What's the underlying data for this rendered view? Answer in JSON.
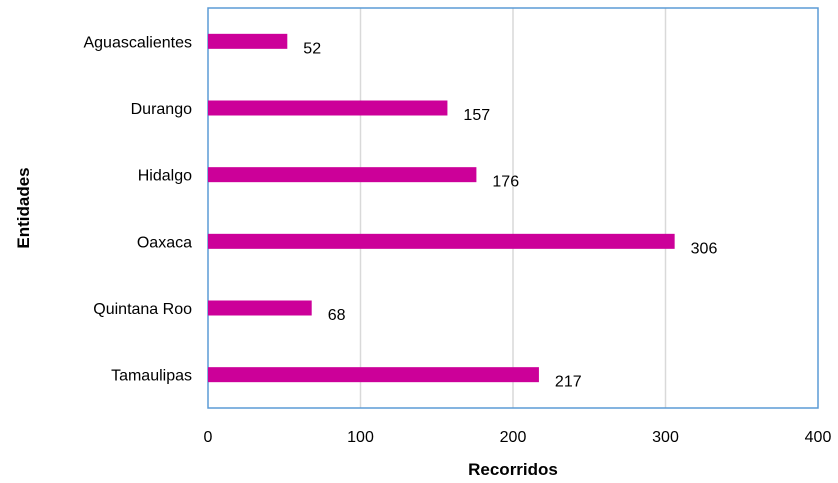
{
  "chart_data": {
    "type": "bar",
    "orientation": "horizontal",
    "categories": [
      "Aguascalientes",
      "Durango",
      "Hidalgo",
      "Oaxaca",
      "Quintana Roo",
      "Tamaulipas"
    ],
    "values": [
      52,
      157,
      176,
      306,
      68,
      217
    ],
    "xlabel": "Recorridos",
    "ylabel": "Entidades",
    "xlim": [
      0,
      400
    ],
    "xticks": [
      0,
      100,
      200,
      300,
      400
    ],
    "grid": true,
    "legend": "none",
    "bar_color": "#cc0099",
    "plot_border_color": "#5b9bd5",
    "grid_color": "#d9d9d9"
  }
}
